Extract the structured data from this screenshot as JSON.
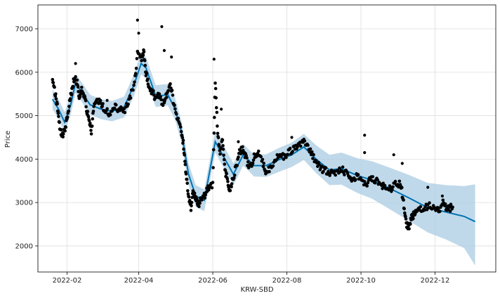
{
  "chart_data": {
    "type": "line",
    "title": "",
    "xlabel": "KRW-SBD",
    "ylabel": "Price",
    "x_tick_labels": [
      "2022-02",
      "2022-04",
      "2022-06",
      "2022-08",
      "2022-10",
      "2022-12"
    ],
    "y_tick_labels": [
      "2000",
      "3000",
      "4000",
      "5000",
      "6000",
      "7000"
    ],
    "xlim": [
      "2022-01-08",
      "2023-01-20"
    ],
    "ylim": [
      1400,
      7550
    ],
    "grid": true,
    "colors": {
      "forecast": "#0072B2",
      "interval": "#a9cce3",
      "observed": "#000000",
      "grid": "#dddddd"
    },
    "series": [
      {
        "role": "forecast-trend",
        "points": [
          [
            "2022-01-20",
            5380
          ],
          [
            "2022-01-25",
            5150
          ],
          [
            "2022-01-30",
            4850
          ],
          [
            "2022-02-04",
            5250
          ],
          [
            "2022-02-08",
            5750
          ],
          [
            "2022-02-14",
            5500
          ],
          [
            "2022-02-20",
            5250
          ],
          [
            "2022-03-01",
            5150
          ],
          [
            "2022-03-10",
            5100
          ],
          [
            "2022-03-20",
            5200
          ],
          [
            "2022-03-28",
            5700
          ],
          [
            "2022-04-03",
            6200
          ],
          [
            "2022-04-07",
            6100
          ],
          [
            "2022-04-15",
            5450
          ],
          [
            "2022-04-25",
            5480
          ],
          [
            "2022-05-01",
            5150
          ],
          [
            "2022-05-06",
            4650
          ],
          [
            "2022-05-12",
            3650
          ],
          [
            "2022-05-18",
            3150
          ],
          [
            "2022-05-25",
            3050
          ],
          [
            "2022-06-03",
            4400
          ],
          [
            "2022-06-10",
            4050
          ],
          [
            "2022-06-18",
            3650
          ],
          [
            "2022-06-26",
            4100
          ],
          [
            "2022-07-05",
            3850
          ],
          [
            "2022-07-15",
            3850
          ],
          [
            "2022-07-25",
            3980
          ],
          [
            "2022-08-05",
            4100
          ],
          [
            "2022-08-15",
            4280
          ],
          [
            "2022-08-25",
            4000
          ],
          [
            "2022-09-05",
            3750
          ],
          [
            "2022-09-15",
            3780
          ],
          [
            "2022-09-28",
            3620
          ],
          [
            "2022-10-10",
            3520
          ],
          [
            "2022-10-25",
            3320
          ],
          [
            "2022-11-10",
            3100
          ],
          [
            "2022-11-25",
            2880
          ],
          [
            "2022-12-10",
            2780
          ],
          [
            "2022-12-25",
            2680
          ],
          [
            "2023-01-03",
            2560
          ]
        ],
        "upper": [
          [
            "2022-01-20",
            5600
          ],
          [
            "2022-01-25",
            5380
          ],
          [
            "2022-01-30",
            5080
          ],
          [
            "2022-02-04",
            5480
          ],
          [
            "2022-02-08",
            5960
          ],
          [
            "2022-02-14",
            5730
          ],
          [
            "2022-02-20",
            5480
          ],
          [
            "2022-03-01",
            5380
          ],
          [
            "2022-03-10",
            5340
          ],
          [
            "2022-03-20",
            5440
          ],
          [
            "2022-03-28",
            5950
          ],
          [
            "2022-04-03",
            6450
          ],
          [
            "2022-04-07",
            6350
          ],
          [
            "2022-04-15",
            5700
          ],
          [
            "2022-04-25",
            5730
          ],
          [
            "2022-05-01",
            5400
          ],
          [
            "2022-05-06",
            4900
          ],
          [
            "2022-05-12",
            3900
          ],
          [
            "2022-05-18",
            3400
          ],
          [
            "2022-05-25",
            3300
          ],
          [
            "2022-06-03",
            4650
          ],
          [
            "2022-06-10",
            4300
          ],
          [
            "2022-06-18",
            3900
          ],
          [
            "2022-06-26",
            4350
          ],
          [
            "2022-07-05",
            4100
          ],
          [
            "2022-07-15",
            4110
          ],
          [
            "2022-07-25",
            4250
          ],
          [
            "2022-08-05",
            4380
          ],
          [
            "2022-08-15",
            4580
          ],
          [
            "2022-08-25",
            4320
          ],
          [
            "2022-09-05",
            4100
          ],
          [
            "2022-09-15",
            4150
          ],
          [
            "2022-09-28",
            4020
          ],
          [
            "2022-10-10",
            3950
          ],
          [
            "2022-10-25",
            3800
          ],
          [
            "2022-11-10",
            3630
          ],
          [
            "2022-11-25",
            3450
          ],
          [
            "2022-12-10",
            3400
          ],
          [
            "2022-12-25",
            3380
          ],
          [
            "2023-01-03",
            3420
          ]
        ],
        "lower": [
          [
            "2022-01-20",
            5150
          ],
          [
            "2022-01-25",
            4920
          ],
          [
            "2022-01-30",
            4620
          ],
          [
            "2022-02-04",
            5020
          ],
          [
            "2022-02-08",
            5530
          ],
          [
            "2022-02-14",
            5280
          ],
          [
            "2022-02-20",
            5020
          ],
          [
            "2022-03-01",
            4920
          ],
          [
            "2022-03-10",
            4870
          ],
          [
            "2022-03-20",
            4960
          ],
          [
            "2022-03-28",
            5450
          ],
          [
            "2022-04-03",
            5950
          ],
          [
            "2022-04-07",
            5850
          ],
          [
            "2022-04-15",
            5200
          ],
          [
            "2022-04-25",
            5230
          ],
          [
            "2022-05-01",
            4900
          ],
          [
            "2022-05-06",
            4400
          ],
          [
            "2022-05-12",
            3400
          ],
          [
            "2022-05-18",
            2900
          ],
          [
            "2022-05-25",
            2800
          ],
          [
            "2022-06-03",
            4150
          ],
          [
            "2022-06-10",
            3800
          ],
          [
            "2022-06-18",
            3400
          ],
          [
            "2022-06-26",
            3850
          ],
          [
            "2022-07-05",
            3600
          ],
          [
            "2022-07-15",
            3590
          ],
          [
            "2022-07-25",
            3700
          ],
          [
            "2022-08-05",
            3820
          ],
          [
            "2022-08-15",
            3980
          ],
          [
            "2022-08-25",
            3680
          ],
          [
            "2022-09-05",
            3400
          ],
          [
            "2022-09-15",
            3410
          ],
          [
            "2022-09-28",
            3220
          ],
          [
            "2022-10-10",
            3090
          ],
          [
            "2022-10-25",
            2840
          ],
          [
            "2022-11-10",
            2570
          ],
          [
            "2022-11-25",
            2310
          ],
          [
            "2022-12-10",
            2150
          ],
          [
            "2022-12-25",
            1950
          ],
          [
            "2023-01-03",
            1550
          ]
        ]
      },
      {
        "role": "observed",
        "points": [
          [
            "2022-01-20",
            5750
          ],
          [
            "2022-01-22",
            5550
          ],
          [
            "2022-01-24",
            5200
          ],
          [
            "2022-01-26",
            4700
          ],
          [
            "2022-01-28",
            4550
          ],
          [
            "2022-01-30",
            4650
          ],
          [
            "2022-02-01",
            4950
          ],
          [
            "2022-02-03",
            5300
          ],
          [
            "2022-02-05",
            5600
          ],
          [
            "2022-02-07",
            5850
          ],
          [
            "2022-02-09",
            5800
          ],
          [
            "2022-02-11",
            5450
          ],
          [
            "2022-02-13",
            5600
          ],
          [
            "2022-02-15",
            5500
          ],
          [
            "2022-02-17",
            5150
          ],
          [
            "2022-02-19",
            4900
          ],
          [
            "2022-02-21",
            4650
          ],
          [
            "2022-02-23",
            5200
          ],
          [
            "2022-02-26",
            5400
          ],
          [
            "2022-03-01",
            5250
          ],
          [
            "2022-03-04",
            5150
          ],
          [
            "2022-03-08",
            5050
          ],
          [
            "2022-03-12",
            5200
          ],
          [
            "2022-03-16",
            5150
          ],
          [
            "2022-03-20",
            5100
          ],
          [
            "2022-03-24",
            5350
          ],
          [
            "2022-03-28",
            5700
          ],
          [
            "2022-03-31",
            6400
          ],
          [
            "2022-04-03",
            6300
          ],
          [
            "2022-04-05",
            6500
          ],
          [
            "2022-04-07",
            6000
          ],
          [
            "2022-04-09",
            5700
          ],
          [
            "2022-04-12",
            5550
          ],
          [
            "2022-04-15",
            5400
          ],
          [
            "2022-04-18",
            5450
          ],
          [
            "2022-04-21",
            5250
          ],
          [
            "2022-04-24",
            5500
          ],
          [
            "2022-04-27",
            5800
          ],
          [
            "2022-04-30",
            5250
          ],
          [
            "2022-05-03",
            4950
          ],
          [
            "2022-05-06",
            4650
          ],
          [
            "2022-05-08",
            4300
          ],
          [
            "2022-05-10",
            3650
          ],
          [
            "2022-05-12",
            3100
          ],
          [
            "2022-05-14",
            2850
          ],
          [
            "2022-05-16",
            3300
          ],
          [
            "2022-05-18",
            3100
          ],
          [
            "2022-05-20",
            2950
          ],
          [
            "2022-05-22",
            3050
          ],
          [
            "2022-05-25",
            3150
          ],
          [
            "2022-05-28",
            3350
          ],
          [
            "2022-06-01",
            3400
          ],
          [
            "2022-06-03",
            5800
          ],
          [
            "2022-06-05",
            4600
          ],
          [
            "2022-06-07",
            4100
          ],
          [
            "2022-06-09",
            4500
          ],
          [
            "2022-06-11",
            3750
          ],
          [
            "2022-06-13",
            3500
          ],
          [
            "2022-06-15",
            3250
          ],
          [
            "2022-06-17",
            3500
          ],
          [
            "2022-06-20",
            3800
          ],
          [
            "2022-06-23",
            4150
          ],
          [
            "2022-06-26",
            4250
          ],
          [
            "2022-06-29",
            3950
          ],
          [
            "2022-07-02",
            3800
          ],
          [
            "2022-07-05",
            4050
          ],
          [
            "2022-07-08",
            4150
          ],
          [
            "2022-07-12",
            3950
          ],
          [
            "2022-07-15",
            3700
          ],
          [
            "2022-07-18",
            3800
          ],
          [
            "2022-07-22",
            3950
          ],
          [
            "2022-07-26",
            4100
          ],
          [
            "2022-07-30",
            4050
          ],
          [
            "2022-08-03",
            4150
          ],
          [
            "2022-08-07",
            4250
          ],
          [
            "2022-08-11",
            4350
          ],
          [
            "2022-08-15",
            4400
          ],
          [
            "2022-08-19",
            4250
          ],
          [
            "2022-08-23",
            4050
          ],
          [
            "2022-08-27",
            3850
          ],
          [
            "2022-08-31",
            3750
          ],
          [
            "2022-09-04",
            3700
          ],
          [
            "2022-09-08",
            3650
          ],
          [
            "2022-09-12",
            3700
          ],
          [
            "2022-09-16",
            3750
          ],
          [
            "2022-09-20",
            3650
          ],
          [
            "2022-09-24",
            3550
          ],
          [
            "2022-09-28",
            3600
          ],
          [
            "2022-10-02",
            3500
          ],
          [
            "2022-10-06",
            3450
          ],
          [
            "2022-10-10",
            3550
          ],
          [
            "2022-10-14",
            3500
          ],
          [
            "2022-10-18",
            3400
          ],
          [
            "2022-10-22",
            3350
          ],
          [
            "2022-10-26",
            3300
          ],
          [
            "2022-10-30",
            3450
          ],
          [
            "2022-11-03",
            3400
          ],
          [
            "2022-11-05",
            3000
          ],
          [
            "2022-11-07",
            2550
          ],
          [
            "2022-11-09",
            2400
          ],
          [
            "2022-11-11",
            2600
          ],
          [
            "2022-11-13",
            2700
          ],
          [
            "2022-11-15",
            2750
          ],
          [
            "2022-11-19",
            2850
          ],
          [
            "2022-11-23",
            2900
          ],
          [
            "2022-11-27",
            2950
          ],
          [
            "2022-12-01",
            2850
          ],
          [
            "2022-12-04",
            2800
          ],
          [
            "2022-12-07",
            3000
          ],
          [
            "2022-12-10",
            2900
          ],
          [
            "2022-12-13",
            2850
          ],
          [
            "2022-12-16",
            2950
          ]
        ]
      }
    ],
    "outliers": [
      [
        "2022-02-08",
        6200
      ],
      [
        "2022-03-06",
        5350
      ],
      [
        "2022-03-31",
        7200
      ],
      [
        "2022-04-01",
        6900
      ],
      [
        "2022-04-20",
        7050
      ],
      [
        "2022-04-22",
        6500
      ],
      [
        "2022-04-28",
        6350
      ],
      [
        "2022-06-02",
        6300
      ],
      [
        "2022-06-08",
        5150
      ],
      [
        "2022-06-22",
        4400
      ],
      [
        "2022-08-05",
        4500
      ],
      [
        "2022-10-04",
        4550
      ],
      [
        "2022-10-04",
        4150
      ],
      [
        "2022-10-28",
        4100
      ],
      [
        "2022-11-04",
        3900
      ],
      [
        "2022-11-25",
        3350
      ],
      [
        "2022-12-07",
        3150
      ]
    ]
  }
}
